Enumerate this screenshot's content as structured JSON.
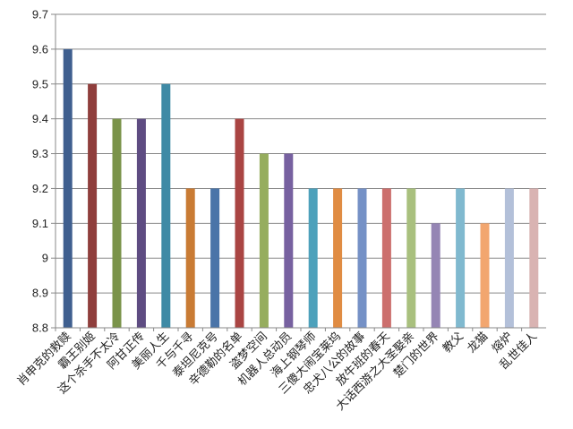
{
  "chart_data": {
    "type": "bar",
    "categories": [
      "肖申克的救赎",
      "霸王别姬",
      "这个杀手不太冷",
      "阿甘正传",
      "美丽人生",
      "千与千寻",
      "泰坦尼克号",
      "辛德勒的名单",
      "盗梦空间",
      "机器人总动员",
      "海上钢琴师",
      "三傻大闹宝莱坞",
      "忠犬八公的故事",
      "放牛班的春天",
      "大话西游之大圣娶亲",
      "楚门的世界",
      "教父",
      "龙猫",
      "熔炉",
      "乱世佳人"
    ],
    "values": [
      9.6,
      9.5,
      9.4,
      9.4,
      9.5,
      9.2,
      9.2,
      9.4,
      9.3,
      9.3,
      9.2,
      9.2,
      9.2,
      9.2,
      9.2,
      9.1,
      9.2,
      9.1,
      9.2,
      9.2
    ],
    "colors": [
      "#3f5f8f",
      "#8f3e3c",
      "#7a934a",
      "#5e4c82",
      "#3f8aa5",
      "#c97b34",
      "#4a74a8",
      "#aa4543",
      "#96ad5e",
      "#7761a0",
      "#4da1bb",
      "#e08c43",
      "#7591c6",
      "#cc6f6d",
      "#a9c07e",
      "#9585b4",
      "#80b9cf",
      "#f2a66f",
      "#b3c0d9",
      "#d9b3b2"
    ],
    "ylim": [
      8.8,
      9.7
    ],
    "yticks": [
      "8.8",
      "8.9",
      "9",
      "9.1",
      "9.2",
      "9.3",
      "9.4",
      "9.5",
      "9.6",
      "9.7"
    ],
    "grid": true,
    "legend": "none"
  }
}
